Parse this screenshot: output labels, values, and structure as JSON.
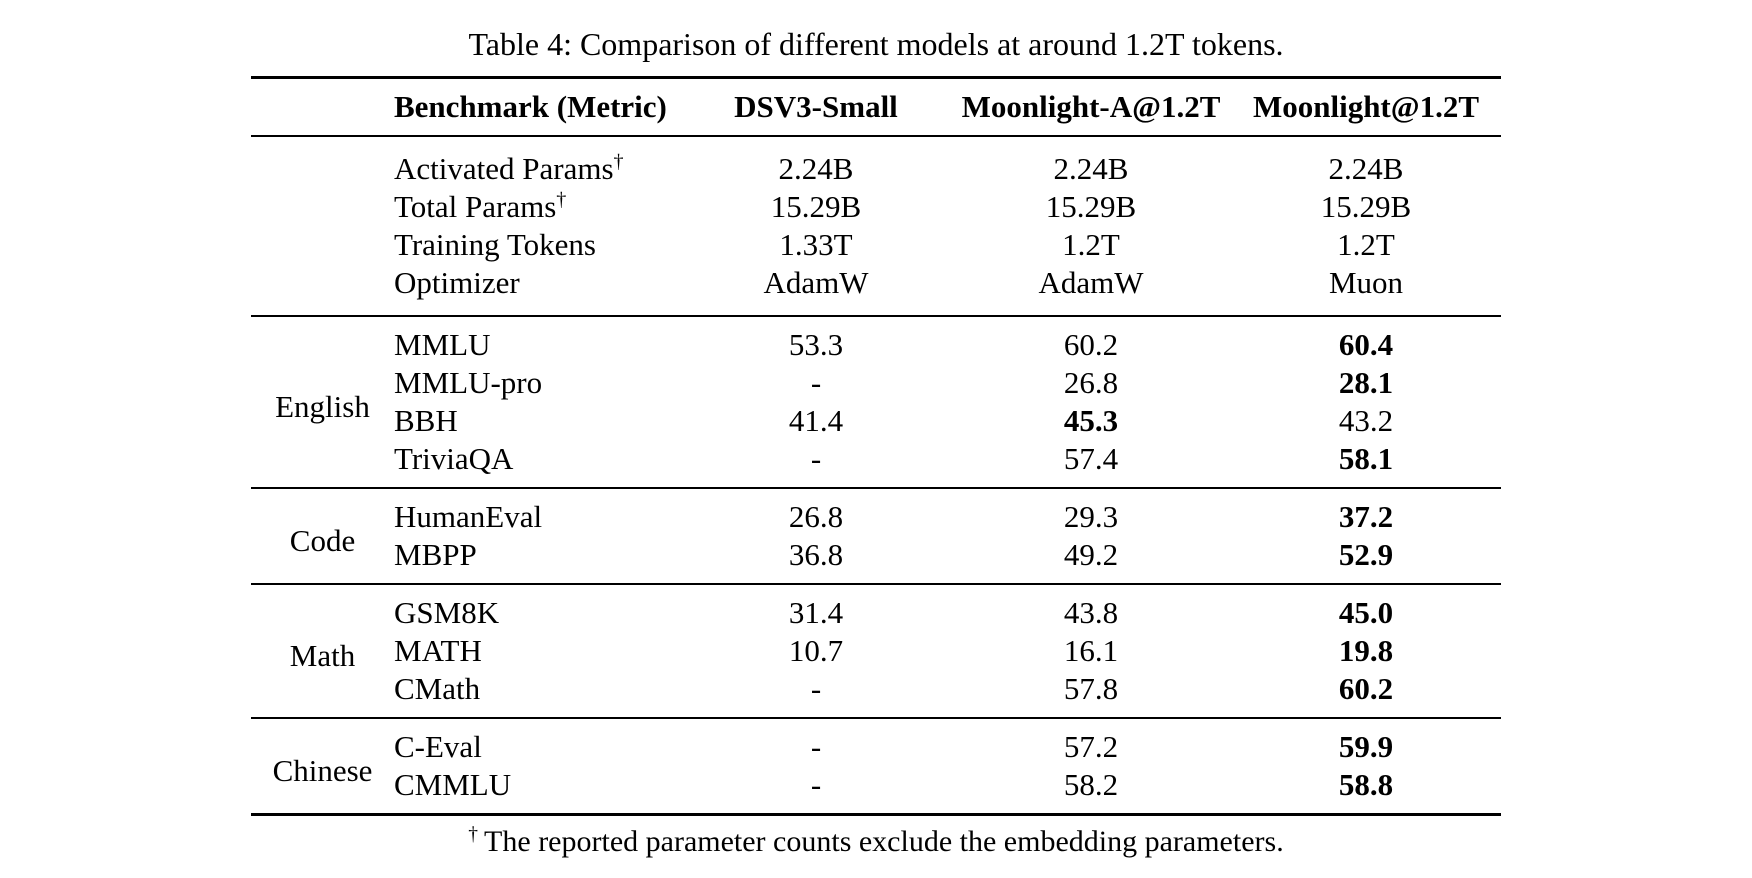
{
  "title": "Table 4: Comparison of different models at around 1.2T tokens.",
  "columns": {
    "group": "",
    "benchmark": "Benchmark (Metric)",
    "model1": "DSV3-Small",
    "model2": "Moonlight-A@1.2T",
    "model3": "Moonlight@1.2T"
  },
  "sections": [
    {
      "group": "",
      "rows": [
        {
          "benchmark": "Activated Params",
          "sup": "†",
          "v1": {
            "text": "2.24B",
            "bold": false
          },
          "v2": {
            "text": "2.24B",
            "bold": false
          },
          "v3": {
            "text": "2.24B",
            "bold": false
          }
        },
        {
          "benchmark": "Total Params",
          "sup": "†",
          "v1": {
            "text": "15.29B",
            "bold": false
          },
          "v2": {
            "text": "15.29B",
            "bold": false
          },
          "v3": {
            "text": "15.29B",
            "bold": false
          }
        },
        {
          "benchmark": "Training Tokens",
          "sup": "",
          "v1": {
            "text": "1.33T",
            "bold": false
          },
          "v2": {
            "text": "1.2T",
            "bold": false
          },
          "v3": {
            "text": "1.2T",
            "bold": false
          }
        },
        {
          "benchmark": "Optimizer",
          "sup": "",
          "v1": {
            "text": "AdamW",
            "bold": false
          },
          "v2": {
            "text": "AdamW",
            "bold": false
          },
          "v3": {
            "text": "Muon",
            "bold": false
          }
        }
      ]
    },
    {
      "group": "English",
      "rows": [
        {
          "benchmark": "MMLU",
          "v1": {
            "text": "53.3",
            "bold": false
          },
          "v2": {
            "text": "60.2",
            "bold": false
          },
          "v3": {
            "text": "60.4",
            "bold": true
          }
        },
        {
          "benchmark": "MMLU-pro",
          "v1": {
            "text": "-",
            "bold": false
          },
          "v2": {
            "text": "26.8",
            "bold": false
          },
          "v3": {
            "text": "28.1",
            "bold": true
          }
        },
        {
          "benchmark": "BBH",
          "v1": {
            "text": "41.4",
            "bold": false
          },
          "v2": {
            "text": "45.3",
            "bold": true
          },
          "v3": {
            "text": "43.2",
            "bold": false
          }
        },
        {
          "benchmark": "TriviaQA",
          "v1": {
            "text": "-",
            "bold": false
          },
          "v2": {
            "text": "57.4",
            "bold": false
          },
          "v3": {
            "text": "58.1",
            "bold": true
          }
        }
      ]
    },
    {
      "group": "Code",
      "rows": [
        {
          "benchmark": "HumanEval",
          "v1": {
            "text": "26.8",
            "bold": false
          },
          "v2": {
            "text": "29.3",
            "bold": false
          },
          "v3": {
            "text": "37.2",
            "bold": true
          }
        },
        {
          "benchmark": "MBPP",
          "v1": {
            "text": "36.8",
            "bold": false
          },
          "v2": {
            "text": "49.2",
            "bold": false
          },
          "v3": {
            "text": "52.9",
            "bold": true
          }
        }
      ]
    },
    {
      "group": "Math",
      "rows": [
        {
          "benchmark": "GSM8K",
          "v1": {
            "text": "31.4",
            "bold": false
          },
          "v2": {
            "text": "43.8",
            "bold": false
          },
          "v3": {
            "text": "45.0",
            "bold": true
          }
        },
        {
          "benchmark": "MATH",
          "v1": {
            "text": "10.7",
            "bold": false
          },
          "v2": {
            "text": "16.1",
            "bold": false
          },
          "v3": {
            "text": "19.8",
            "bold": true
          }
        },
        {
          "benchmark": "CMath",
          "v1": {
            "text": "-",
            "bold": false
          },
          "v2": {
            "text": "57.8",
            "bold": false
          },
          "v3": {
            "text": "60.2",
            "bold": true
          }
        }
      ]
    },
    {
      "group": "Chinese",
      "rows": [
        {
          "benchmark": "C-Eval",
          "v1": {
            "text": "-",
            "bold": false
          },
          "v2": {
            "text": "57.2",
            "bold": false
          },
          "v3": {
            "text": "59.9",
            "bold": true
          }
        },
        {
          "benchmark": "CMMLU",
          "v1": {
            "text": "-",
            "bold": false
          },
          "v2": {
            "text": "58.2",
            "bold": false
          },
          "v3": {
            "text": "58.8",
            "bold": true
          }
        }
      ]
    }
  ],
  "footnote": {
    "sup": "†",
    "text": "The reported parameter counts exclude the embedding parameters."
  }
}
